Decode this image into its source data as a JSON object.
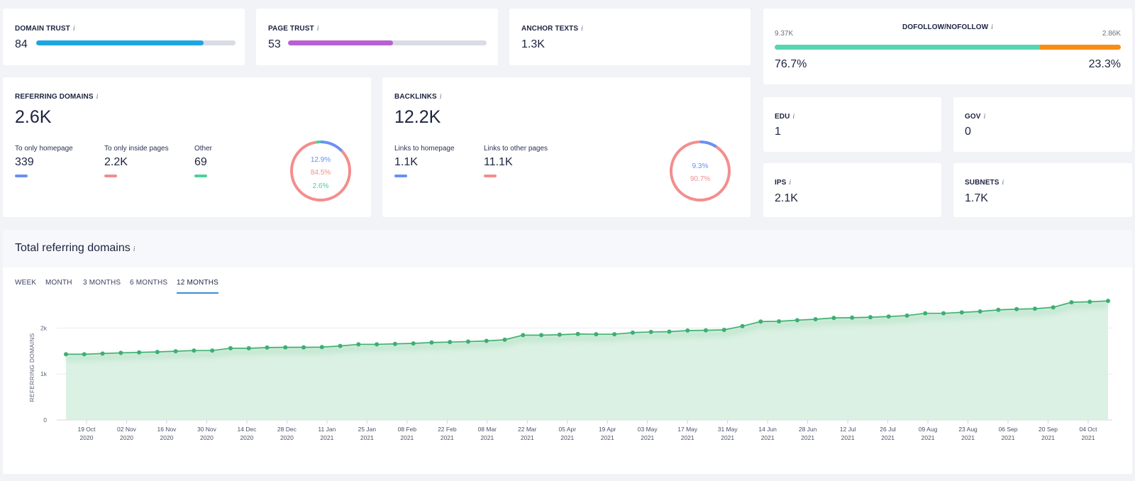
{
  "domain_trust": {
    "label": "DOMAIN TRUST",
    "info": "i",
    "value": "84",
    "level": 0.84,
    "color": "#1da5e0"
  },
  "page_trust": {
    "label": "PAGE TRUST",
    "info": "i",
    "value": "53",
    "level": 0.53,
    "color": "#b85fd3"
  },
  "anchor_texts": {
    "label": "ANCHOR TEXTS",
    "info": "i",
    "value": "1.3K"
  },
  "dofollow": {
    "label": "DOFOLLOW/NOFOLLOW",
    "info": "i",
    "left_count": "9.37K",
    "right_count": "2.86K",
    "left_pct": "76.7%",
    "right_pct": "23.3%",
    "level": 0.767,
    "colors": {
      "dofollow": "#56d6b0",
      "nofollow": "#f98c14"
    }
  },
  "referring_domains": {
    "label": "REFERRING DOMAINS",
    "info": "i",
    "value": "2.6K",
    "breakdown": [
      {
        "label": "To only homepage",
        "value": "339",
        "color": "#6b8ff2"
      },
      {
        "label": "To only inside pages",
        "value": "2.2K",
        "color": "#f48d8d"
      },
      {
        "label": "Other",
        "value": "69",
        "color": "#4ccf9c"
      }
    ],
    "donut": [
      {
        "pct": "12.9%",
        "fraction": 0.129,
        "color": "#6b8ff2"
      },
      {
        "pct": "84.5%",
        "fraction": 0.845,
        "color": "#f48d8d"
      },
      {
        "pct": "2.6%",
        "fraction": 0.026,
        "color": "#4ccf9c"
      }
    ]
  },
  "backlinks": {
    "label": "BACKLINKS",
    "info": "i",
    "value": "12.2K",
    "breakdown": [
      {
        "label": "Links to homepage",
        "value": "1.1K",
        "color": "#6b8ff2"
      },
      {
        "label": "Links to other pages",
        "value": "11.1K",
        "color": "#f48d8d"
      }
    ],
    "donut": [
      {
        "pct": "9.3%",
        "fraction": 0.093,
        "color": "#6b8ff2"
      },
      {
        "pct": "90.7%",
        "fraction": 0.907,
        "color": "#f48d8d"
      }
    ]
  },
  "edu": {
    "label": "EDU",
    "info": "i",
    "value": "1"
  },
  "gov": {
    "label": "GOV",
    "info": "i",
    "value": "0"
  },
  "ips": {
    "label": "IPS",
    "info": "i",
    "value": "2.1K"
  },
  "subnets": {
    "label": "SUBNETS",
    "info": "i",
    "value": "1.7K"
  },
  "total": {
    "title": "Total referring domains",
    "info": "i",
    "tabs": [
      "WEEK",
      "MONTH",
      "3 MONTHS",
      "6 MONTHS",
      "12 MONTHS"
    ],
    "active_tab": "12 MONTHS"
  },
  "chart_data": {
    "type": "area",
    "ylabel": "REFERRING DOMAINS",
    "ylim": [
      0,
      2700
    ],
    "yticks": [
      "0",
      "1k",
      "2k"
    ],
    "ytick_values": [
      0,
      1000,
      2000
    ],
    "xticks": [
      [
        "19 Oct",
        "2020"
      ],
      [
        "02 Nov",
        "2020"
      ],
      [
        "16 Nov",
        "2020"
      ],
      [
        "30 Nov",
        "2020"
      ],
      [
        "14 Dec",
        "2020"
      ],
      [
        "28 Dec",
        "2020"
      ],
      [
        "11 Jan",
        "2021"
      ],
      [
        "25 Jan",
        "2021"
      ],
      [
        "08 Feb",
        "2021"
      ],
      [
        "22 Feb",
        "2021"
      ],
      [
        "08 Mar",
        "2021"
      ],
      [
        "22 Mar",
        "2021"
      ],
      [
        "05 Apr",
        "2021"
      ],
      [
        "19 Apr",
        "2021"
      ],
      [
        "03 May",
        "2021"
      ],
      [
        "17 May",
        "2021"
      ],
      [
        "31 May",
        "2021"
      ],
      [
        "14 Jun",
        "2021"
      ],
      [
        "28 Jun",
        "2021"
      ],
      [
        "12 Jul",
        "2021"
      ],
      [
        "26 Jul",
        "2021"
      ],
      [
        "09 Aug",
        "2021"
      ],
      [
        "23 Aug",
        "2021"
      ],
      [
        "06 Sep",
        "2021"
      ],
      [
        "20 Sep",
        "2021"
      ],
      [
        "04 Oct",
        "2021"
      ]
    ],
    "series": [
      {
        "values": [
          1430,
          1430,
          1445,
          1460,
          1470,
          1480,
          1495,
          1510,
          1510,
          1560,
          1560,
          1575,
          1580,
          1580,
          1585,
          1610,
          1645,
          1645,
          1655,
          1665,
          1685,
          1695,
          1705,
          1720,
          1745,
          1845,
          1845,
          1855,
          1870,
          1865,
          1865,
          1900,
          1915,
          1920,
          1945,
          1950,
          1960,
          2040,
          2140,
          2145,
          2170,
          2190,
          2220,
          2225,
          2235,
          2250,
          2270,
          2320,
          2320,
          2340,
          2360,
          2395,
          2410,
          2420,
          2450,
          2560,
          2570,
          2590
        ]
      }
    ],
    "grid": true,
    "colors": {
      "line": "#3dae72",
      "area": "#d7efe0"
    }
  }
}
